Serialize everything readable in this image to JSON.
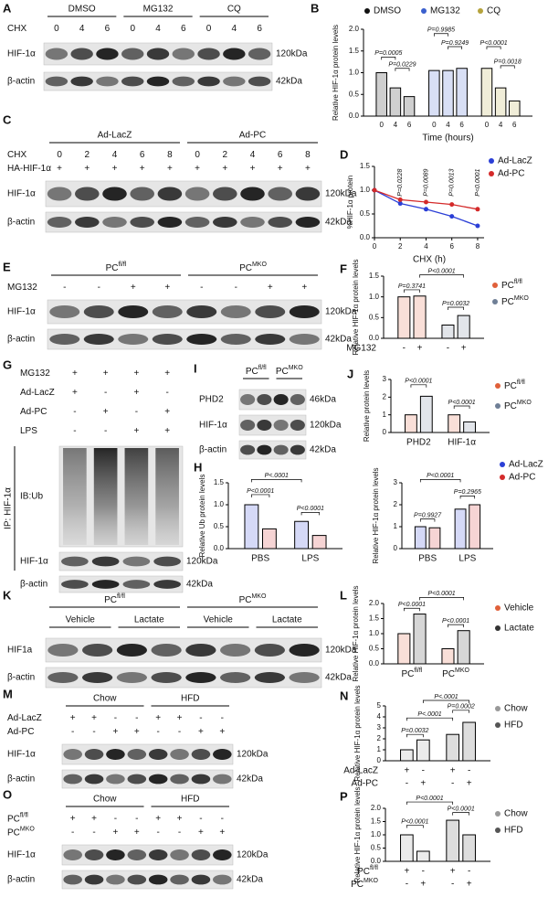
{
  "panels": [
    {
      "type": "blot",
      "letter": "A",
      "groups": [
        "DMSO",
        "MG132",
        "CQ"
      ],
      "conditions": [
        {
          "label": "CHX",
          "values": [
            0,
            4,
            6,
            0,
            4,
            6,
            0,
            4,
            6
          ]
        }
      ],
      "bands": [
        {
          "label": "HIF-1α",
          "size": "120kDa"
        },
        {
          "label": "β-actin",
          "size": "42kDa"
        }
      ]
    },
    {
      "type": "bar",
      "letter": "B",
      "ylabel": "Relative HIF-1α protein levels",
      "xlabel": "Time (hours)",
      "ylim": [
        0,
        2
      ],
      "yticks": [
        {
          "value": 0,
          "label": "0.0"
        },
        0.5,
        {
          "value": 1,
          "label": "1.0"
        },
        1.5,
        {
          "value": 2,
          "label": "2.0"
        }
      ],
      "categories": [
        0,
        4,
        6
      ],
      "series": [
        {
          "name": "DMSO",
          "color": "#111111",
          "values": [
            1.0,
            0.65,
            0.45
          ]
        },
        {
          "name": "MG132",
          "color": "#3a5fcd",
          "values": [
            1.05,
            1.05,
            1.1
          ]
        },
        {
          "name": "CQ",
          "color": "#b5a33c",
          "values": [
            1.1,
            0.65,
            0.35
          ]
        }
      ],
      "pvalues": [
        "P=0.0005",
        "P=0.0229",
        "P=0.9985",
        "P=0.9249",
        "P<0.0001",
        "P=0.0018"
      ]
    },
    {
      "type": "blot",
      "letter": "C",
      "groups": [
        "Ad-LacZ",
        "Ad-PC"
      ],
      "conditions": [
        {
          "label": "CHX",
          "values": [
            0,
            2,
            4,
            6,
            8,
            0,
            2,
            4,
            6,
            8
          ]
        },
        {
          "label": "HA-HIF-1α",
          "values": [
            "+",
            "+",
            "+",
            "+",
            "+",
            "+",
            "+",
            "+",
            "+",
            "+"
          ]
        }
      ],
      "bands": [
        {
          "label": "HIF-1α",
          "size": "120kDa"
        },
        {
          "label": "β-actin",
          "size": "42kDa"
        }
      ]
    },
    {
      "type": "line",
      "letter": "D",
      "ylabel": "%HIF-1α protein",
      "xlabel": "CHX (h)",
      "x": [
        0,
        2,
        4,
        6,
        8
      ],
      "xlim": [
        0,
        8.5
      ],
      "xticks": [
        0,
        2,
        4,
        6,
        8
      ],
      "ylim": [
        0,
        1.5
      ],
      "yticks": [
        {
          "value": 0,
          "label": "0.0"
        },
        0.5,
        {
          "value": 1,
          "label": "1.0"
        },
        1.5
      ],
      "series": [
        {
          "name": "Ad-LacZ",
          "color": "#2b3fd6",
          "values": [
            1.0,
            0.72,
            0.6,
            0.45,
            0.25
          ]
        },
        {
          "name": "Ad-PC",
          "color": "#d42a2a",
          "values": [
            1.0,
            0.8,
            0.75,
            0.7,
            0.6
          ]
        }
      ],
      "pvalues": [
        "P=0.0228",
        "P=0.0089",
        "P=0.0013",
        "P<0.0001"
      ]
    },
    {
      "type": "blot",
      "letter": "E",
      "groups": [
        {
          "text": "PC",
          "sup": "fl/fl"
        },
        {
          "text": "PC",
          "sup": "MKO"
        }
      ],
      "conditions": [
        {
          "label": "MG132",
          "values": [
            "-",
            "-",
            "+",
            "+",
            "-",
            "-",
            "+",
            "+"
          ]
        }
      ],
      "bands": [
        {
          "label": "HIF-1α",
          "size": "120kDa"
        },
        {
          "label": "β-actin",
          "size": "42kDa"
        }
      ]
    },
    {
      "type": "bar",
      "letter": "F",
      "ylabel": "Relative HIF-1α protein levels",
      "ylim": [
        0,
        1.5
      ],
      "yticks": [
        {
          "value": 0,
          "label": "0.0"
        },
        0.5,
        {
          "value": 1,
          "label": "1.0"
        },
        1.5
      ],
      "series": [
        {
          "name": {
            "text": "PC",
            "sup": "fl/fl"
          },
          "color": "#e0603a",
          "values": [
            1.0,
            1.02
          ]
        },
        {
          "name": {
            "text": "PC",
            "sup": "MKO"
          },
          "color": "#6f7f96",
          "values": [
            0.32,
            0.55
          ]
        }
      ],
      "conditions": [
        {
          "label": "MG132",
          "values": [
            "-",
            "+",
            "-",
            "+"
          ]
        }
      ],
      "pvalues": [
        "P=0.3741",
        "P<0.0001",
        "P=0.0032"
      ]
    },
    {
      "type": "blot",
      "letter": "G",
      "conditions": [
        {
          "label": "MG132",
          "values": [
            "+",
            "+",
            "+",
            "+"
          ]
        },
        {
          "label": "Ad-LacZ",
          "values": [
            "+",
            "-",
            "+",
            "-"
          ]
        },
        {
          "label": "Ad-PC",
          "values": [
            "-",
            "+",
            "-",
            "+"
          ]
        },
        {
          "label": "LPS",
          "values": [
            "-",
            "-",
            "+",
            "+"
          ]
        }
      ],
      "ip_label": "IP: HIF-1α",
      "bands": [
        {
          "label": "IB:Ub"
        },
        {
          "label": "HIF-1α",
          "size": "120kDa"
        },
        {
          "label": "β-actin",
          "size": "42kDa"
        }
      ]
    },
    {
      "type": "blot",
      "letter": "I",
      "groups": [
        {
          "text": "PC",
          "sup": "fl/fl"
        },
        {
          "text": "PC",
          "sup": "MKO"
        }
      ],
      "bands": [
        {
          "label": "PHD2",
          "size": "46kDa"
        },
        {
          "label": "HIF-1α",
          "size": "120kDa"
        },
        {
          "label": "β-actin",
          "size": "42kDa"
        }
      ]
    },
    {
      "type": "bar",
      "letter": "J",
      "ylabel": "Relative protein levels",
      "ylim": [
        0,
        3
      ],
      "yticks": [
        0,
        1,
        2,
        3
      ],
      "categories": [
        "PHD2",
        "HIF-1α"
      ],
      "series": [
        {
          "name": {
            "text": "PC",
            "sup": "fl/fl"
          },
          "color": "#e0603a",
          "values": [
            1.0,
            1.0
          ]
        },
        {
          "name": {
            "text": "PC",
            "sup": "MKO"
          },
          "color": "#6f7f96",
          "values": [
            2.05,
            0.6
          ]
        }
      ],
      "pvalues": [
        "P<0.0001",
        "P<0.0001"
      ]
    },
    {
      "type": "bar",
      "letter": "H",
      "ylabel": "Relative Ub protein levels",
      "ylim": [
        0,
        1.5
      ],
      "yticks": [
        {
          "value": 0,
          "label": "0.0"
        },
        0.5,
        {
          "value": 1,
          "label": "1.0"
        },
        1.5
      ],
      "categories": [
        "PBS",
        "LPS"
      ],
      "series": [
        {
          "color": "#2b3fd6",
          "values": [
            1.0,
            0.62
          ]
        },
        {
          "color": "#d42a2a",
          "values": [
            0.45,
            0.3
          ]
        }
      ],
      "pvalues": [
        "P<0.0001",
        "P<0.0001",
        "P<.0001"
      ]
    },
    {
      "type": "bar",
      "ylabel": "Relative HIF-1α protein levels",
      "ylim": [
        0,
        3
      ],
      "yticks": [
        0,
        1,
        2,
        3
      ],
      "categories": [
        "PBS",
        "LPS"
      ],
      "series": [
        {
          "name": "Ad-LacZ",
          "color": "#2b3fd6",
          "values": [
            1.0,
            1.8
          ]
        },
        {
          "name": "Ad-PC",
          "color": "#d42a2a",
          "values": [
            0.95,
            2.0
          ]
        }
      ],
      "pvalues": [
        "P=0.9927",
        "P=0.2965",
        "P<0.0001"
      ]
    },
    {
      "type": "blot",
      "letter": "K",
      "groups": [
        {
          "text": "PC",
          "sup": "fl/fl"
        },
        {
          "text": "PC",
          "sup": "MKO"
        }
      ],
      "subgroups": [
        "Vehicle",
        "Lactate",
        "Vehicle",
        "Lactate"
      ],
      "bands": [
        {
          "label": "HIF1a",
          "size": "120kDa"
        },
        {
          "label": "β-actin",
          "size": "42kDa"
        }
      ]
    },
    {
      "type": "bar",
      "letter": "L",
      "ylabel": "Relative HIF-1α protein levels",
      "ylim": [
        0,
        2
      ],
      "yticks": [
        {
          "value": 0,
          "label": "0.0"
        },
        0.5,
        {
          "value": 1,
          "label": "1.0"
        },
        1.5,
        {
          "value": 2,
          "label": "2.0"
        }
      ],
      "categories": [
        {
          "text": "PC",
          "sup": "fl/fl"
        },
        {
          "text": "PC",
          "sup": "MKO"
        }
      ],
      "series": [
        {
          "name": "Vehicle",
          "color": "#e0603a",
          "values": [
            1.0,
            0.5
          ]
        },
        {
          "name": "Lactate",
          "color": "#333333",
          "values": [
            1.65,
            1.1
          ]
        }
      ],
      "pvalues": [
        "P<0.0001",
        "P<0.0001",
        "P<0.0001"
      ]
    },
    {
      "type": "blot",
      "letter": "M",
      "groups": [
        "Chow",
        "HFD"
      ],
      "conditions": [
        {
          "label": "Ad-LacZ",
          "values": [
            "+",
            "+",
            "-",
            "-",
            "+",
            "+",
            "-",
            "-"
          ]
        },
        {
          "label": "Ad-PC",
          "values": [
            "-",
            "-",
            "+",
            "+",
            "-",
            "-",
            "+",
            "+"
          ]
        }
      ],
      "bands": [
        {
          "label": "HIF-1α",
          "size": "120kDa"
        },
        {
          "label": "β-actin",
          "size": "42kDa"
        }
      ]
    },
    {
      "type": "bar",
      "letter": "N",
      "ylabel": "Relative HIF-1α protein levels",
      "ylim": [
        0,
        5
      ],
      "yticks": [
        0,
        1,
        2,
        3,
        4,
        5
      ],
      "series": [
        {
          "name": "Chow",
          "color": "#999999",
          "values": [
            1.0,
            1.9
          ]
        },
        {
          "name": "HFD",
          "color": "#555555",
          "values": [
            2.4,
            3.5
          ]
        }
      ],
      "conditions": [
        {
          "label": "Ad-LacZ",
          "values": [
            "+",
            "-",
            "+",
            "-"
          ]
        },
        {
          "label": "Ad-PC",
          "values": [
            "-",
            "+",
            "-",
            "+"
          ]
        }
      ],
      "pvalues": [
        "P<.0001",
        "P<.0001",
        "P=0.0032",
        "P=0.0002"
      ]
    },
    {
      "type": "blot",
      "letter": "O",
      "groups": [
        "Chow",
        "HFD"
      ],
      "conditions": [
        {
          "label": {
            "text": "PC",
            "sup": "fl/fl"
          },
          "values": [
            "+",
            "+",
            "-",
            "-",
            "+",
            "+",
            "-",
            "-"
          ]
        },
        {
          "label": {
            "text": "PC",
            "sup": "MKO"
          },
          "values": [
            "-",
            "-",
            "+",
            "+",
            "-",
            "-",
            "+",
            "+"
          ]
        }
      ],
      "bands": [
        {
          "label": "HIF-1α",
          "size": "120kDa"
        },
        {
          "label": "β-actin",
          "size": "42kDa"
        }
      ]
    },
    {
      "type": "bar",
      "letter": "P",
      "ylabel": "Relative HIF-1α protein levels",
      "ylim": [
        0,
        2
      ],
      "yticks": [
        {
          "value": 0,
          "label": "0.0"
        },
        0.5,
        {
          "value": 1,
          "label": "1.0"
        },
        1.5,
        {
          "value": 2,
          "label": "2.0"
        }
      ],
      "series": [
        {
          "name": "Chow",
          "color": "#999999",
          "values": [
            1.0,
            0.38
          ]
        },
        {
          "name": "HFD",
          "color": "#555555",
          "values": [
            1.55,
            1.0
          ]
        }
      ],
      "conditions": [
        {
          "label": {
            "text": "PC",
            "sup": "fl/fl"
          },
          "values": [
            "+",
            "-",
            "+",
            "-"
          ]
        },
        {
          "label": {
            "text": "PC",
            "sup": "MKO"
          },
          "values": [
            "-",
            "+",
            "-",
            "+"
          ]
        }
      ],
      "pvalues": [
        "P<0.0001",
        "P<0.0001",
        "P<0.0001"
      ]
    }
  ]
}
